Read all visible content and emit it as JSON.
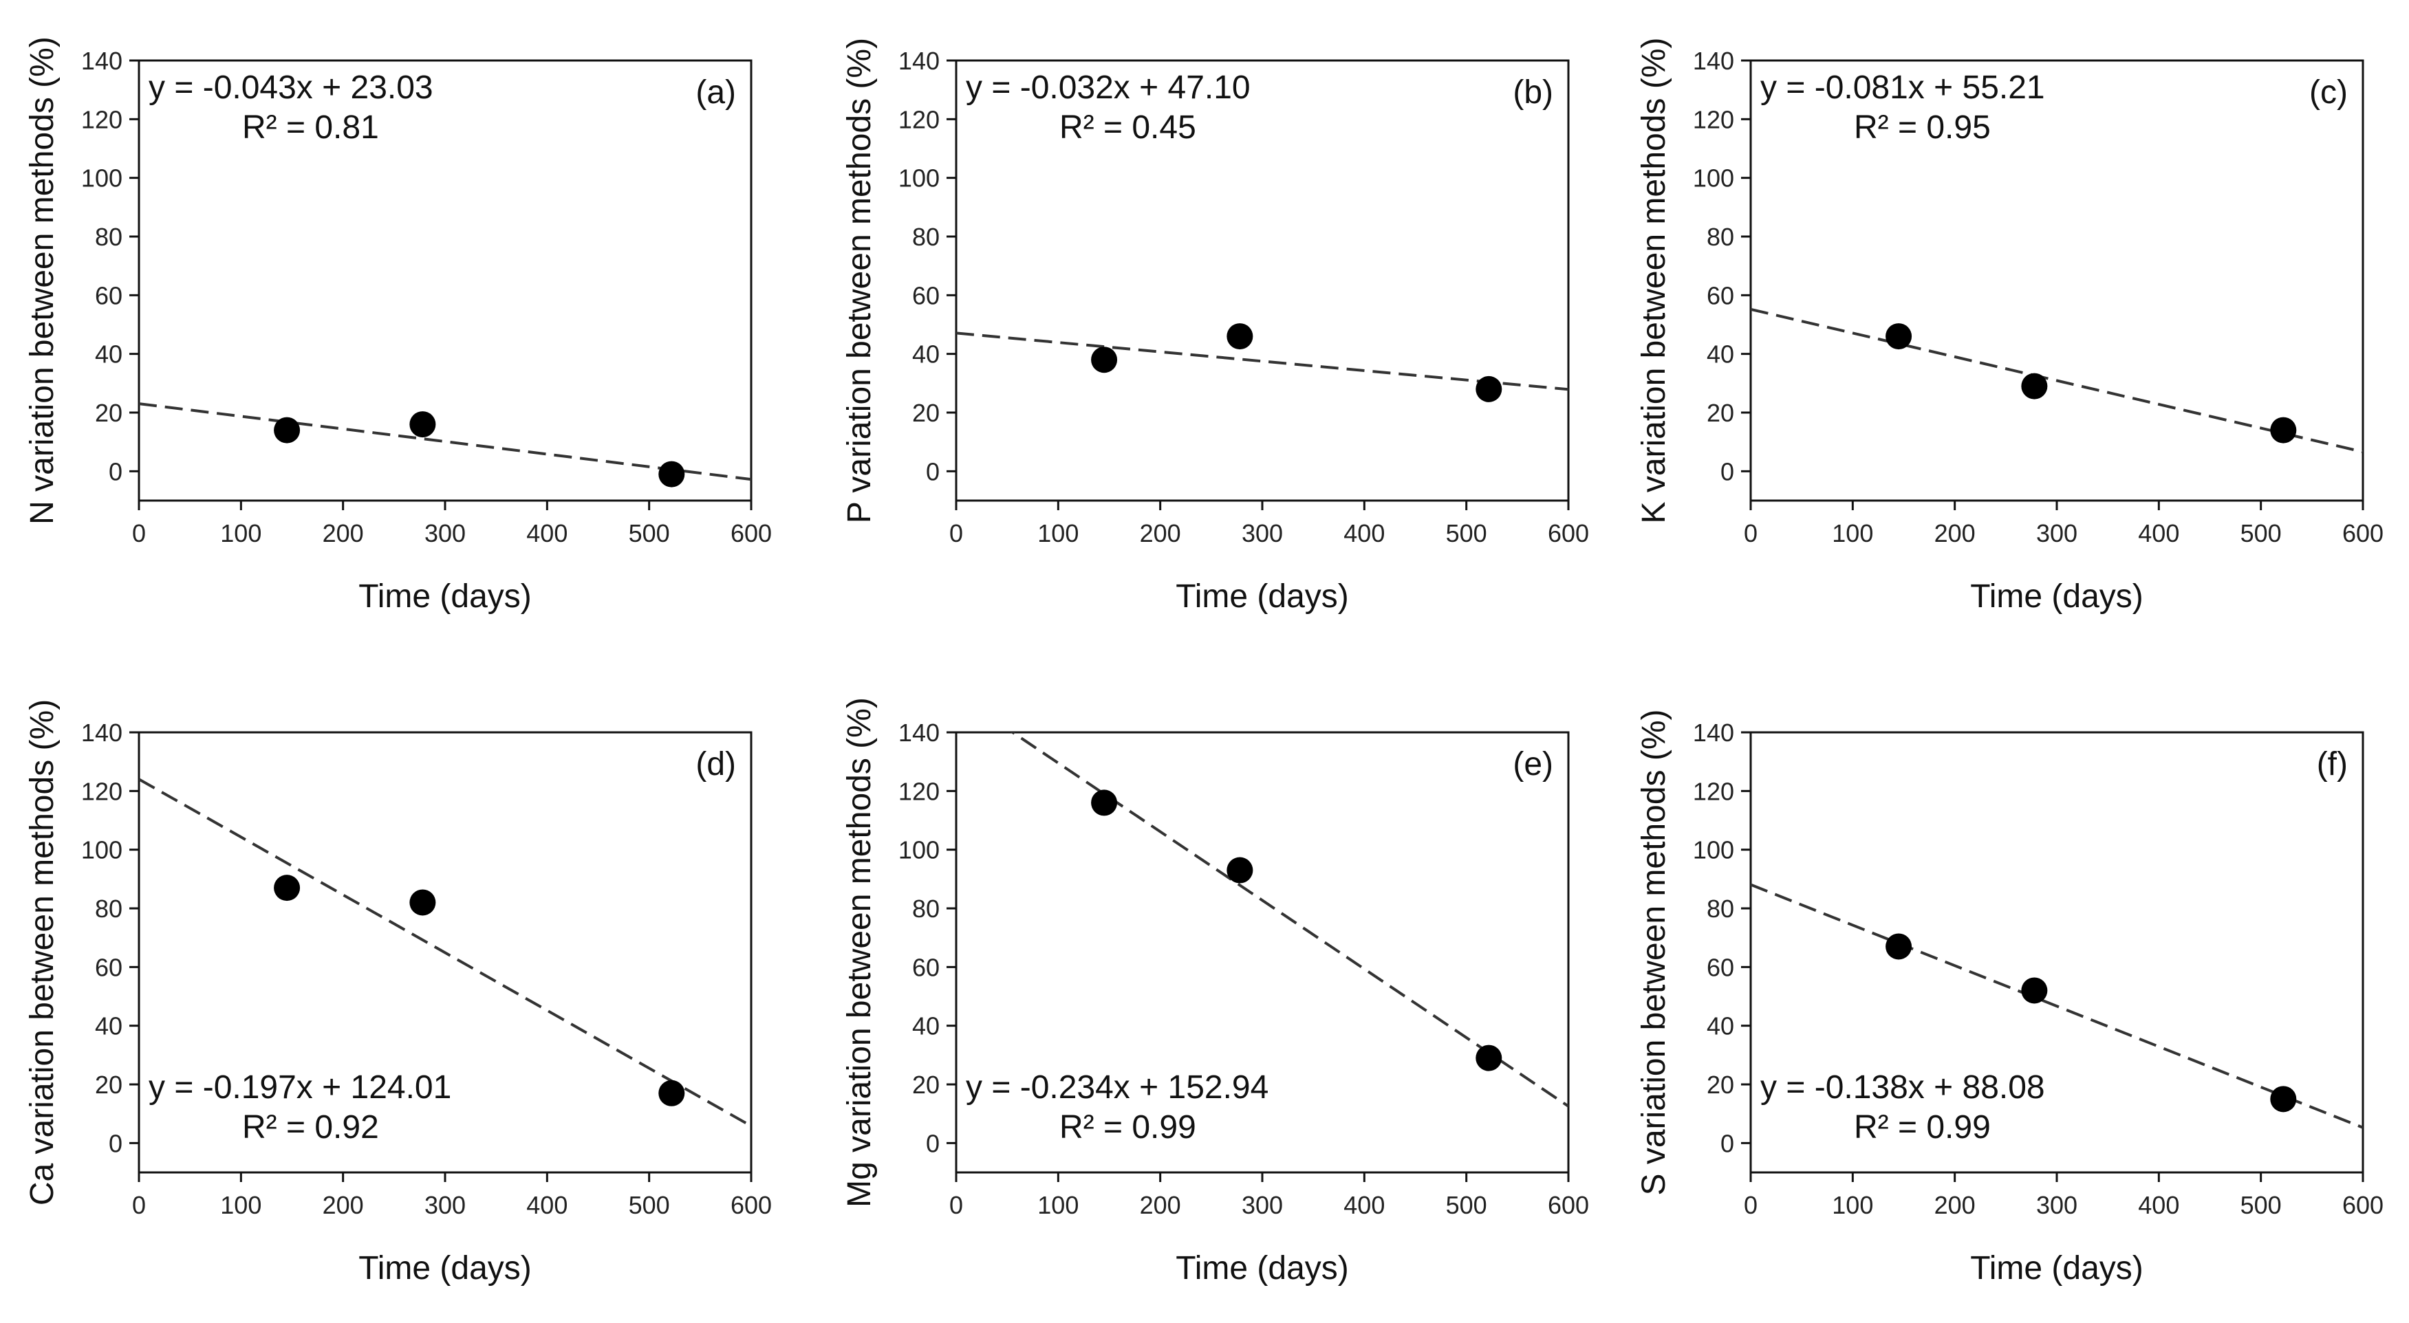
{
  "chart_data": [
    {
      "type": "scatter",
      "panel_label": "(a)",
      "xlabel": "Time (days)",
      "ylabel": "N variation between methods (%)",
      "xlim": [
        0,
        600
      ],
      "ylim": [
        -10,
        140
      ],
      "xticks": [
        0,
        100,
        200,
        300,
        400,
        500,
        600
      ],
      "yticks": [
        0,
        20,
        40,
        60,
        80,
        100,
        120,
        140
      ],
      "x": [
        145,
        278,
        522
      ],
      "y": [
        14,
        16,
        -1
      ],
      "fit": {
        "slope": -0.043,
        "intercept": 23.03,
        "style": "dashed"
      },
      "equation": "y = -0.043x + 23.03",
      "r2": "R² = 0.81",
      "equation_position": "top-left"
    },
    {
      "type": "scatter",
      "panel_label": "(b)",
      "xlabel": "Time (days)",
      "ylabel": "P variation between methods (%)",
      "xlim": [
        0,
        600
      ],
      "ylim": [
        -10,
        140
      ],
      "xticks": [
        0,
        100,
        200,
        300,
        400,
        500,
        600
      ],
      "yticks": [
        0,
        20,
        40,
        60,
        80,
        100,
        120,
        140
      ],
      "x": [
        145,
        278,
        522
      ],
      "y": [
        38,
        46,
        28
      ],
      "fit": {
        "slope": -0.032,
        "intercept": 47.1,
        "style": "dashed"
      },
      "equation": "y = -0.032x + 47.10",
      "r2": "R² = 0.45",
      "equation_position": "top-left"
    },
    {
      "type": "scatter",
      "panel_label": "(c)",
      "xlabel": "Time (days)",
      "ylabel": "K variation between methods (%)",
      "xlim": [
        0,
        600
      ],
      "ylim": [
        -10,
        140
      ],
      "xticks": [
        0,
        100,
        200,
        300,
        400,
        500,
        600
      ],
      "yticks": [
        0,
        20,
        40,
        60,
        80,
        100,
        120,
        140
      ],
      "x": [
        145,
        278,
        522
      ],
      "y": [
        46,
        29,
        14
      ],
      "fit": {
        "slope": -0.081,
        "intercept": 55.21,
        "style": "dashed"
      },
      "equation": "y = -0.081x + 55.21",
      "r2": "R² = 0.95",
      "equation_position": "top-left"
    },
    {
      "type": "scatter",
      "panel_label": "(d)",
      "xlabel": "Time (days)",
      "ylabel": "Ca variation between methods (%)",
      "xlim": [
        0,
        600
      ],
      "ylim": [
        -10,
        140
      ],
      "xticks": [
        0,
        100,
        200,
        300,
        400,
        500,
        600
      ],
      "yticks": [
        0,
        20,
        40,
        60,
        80,
        100,
        120,
        140
      ],
      "x": [
        145,
        278,
        522
      ],
      "y": [
        87,
        82,
        17
      ],
      "fit": {
        "slope": -0.197,
        "intercept": 124.01,
        "style": "dashed"
      },
      "equation": "y = -0.197x + 124.01",
      "r2": "R² = 0.92",
      "equation_position": "bottom-left"
    },
    {
      "type": "scatter",
      "panel_label": "(e)",
      "xlabel": "Time (days)",
      "ylabel": "Mg variation between methods (%)",
      "xlim": [
        0,
        600
      ],
      "ylim": [
        -10,
        140
      ],
      "xticks": [
        0,
        100,
        200,
        300,
        400,
        500,
        600
      ],
      "yticks": [
        0,
        20,
        40,
        60,
        80,
        100,
        120,
        140
      ],
      "x": [
        145,
        278,
        522
      ],
      "y": [
        116,
        93,
        29
      ],
      "fit": {
        "slope": -0.234,
        "intercept": 152.94,
        "style": "dashed"
      },
      "equation": "y = -0.234x + 152.94",
      "r2": "R² = 0.99",
      "equation_position": "bottom-left"
    },
    {
      "type": "scatter",
      "panel_label": "(f)",
      "xlabel": "Time (days)",
      "ylabel": "S variation between methods (%)",
      "xlim": [
        0,
        600
      ],
      "ylim": [
        -10,
        140
      ],
      "xticks": [
        0,
        100,
        200,
        300,
        400,
        500,
        600
      ],
      "yticks": [
        0,
        20,
        40,
        60,
        80,
        100,
        120,
        140
      ],
      "x": [
        145,
        278,
        522
      ],
      "y": [
        67,
        52,
        15
      ],
      "fit": {
        "slope": -0.138,
        "intercept": 88.08,
        "style": "dashed"
      },
      "equation": "y = -0.138x + 88.08",
      "r2": "R² = 0.99",
      "equation_position": "bottom-left"
    }
  ]
}
